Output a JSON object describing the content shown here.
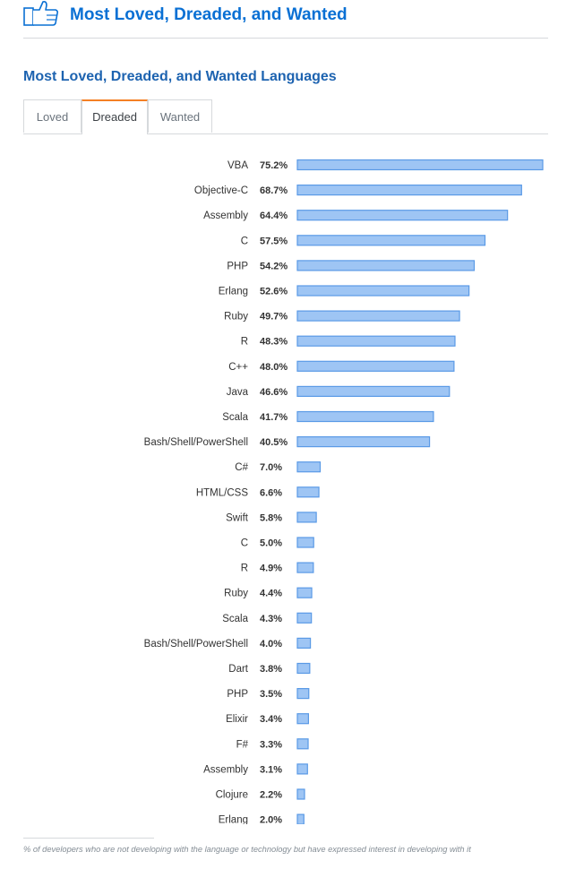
{
  "header": {
    "title": "Most Loved, Dreaded, and Wanted",
    "accent_color": "#0a70d4",
    "icon": "thumbs-up-icon"
  },
  "section": {
    "title": "Most Loved, Dreaded, and Wanted Languages"
  },
  "tabs": [
    {
      "label": "Loved",
      "active": false
    },
    {
      "label": "Dreaded",
      "active": true
    },
    {
      "label": "Wanted",
      "active": false
    }
  ],
  "colors": {
    "bar_fill": "#9ec5f4",
    "bar_stroke": "#5a9ae6",
    "active_tab_accent": "#f48024"
  },
  "chart_data": {
    "type": "bar",
    "orientation": "horizontal",
    "value_suffix": "%",
    "xlim": [
      0,
      75.2
    ],
    "grid": false,
    "categories": [
      "VBA",
      "Objective-C",
      "Assembly",
      "C",
      "PHP",
      "Erlang",
      "Ruby",
      "R",
      "C++",
      "Java",
      "Scala",
      "Bash/Shell/PowerShell",
      "C#",
      "HTML/CSS",
      "Swift",
      "C",
      "R",
      "Ruby",
      "Scala",
      "Bash/Shell/PowerShell",
      "Dart",
      "PHP",
      "Elixir",
      "F#",
      "Assembly",
      "Clojure",
      "Erlang"
    ],
    "values": [
      75.2,
      68.7,
      64.4,
      57.5,
      54.2,
      52.6,
      49.7,
      48.3,
      48.0,
      46.6,
      41.7,
      40.5,
      7.0,
      6.6,
      5.8,
      5.0,
      4.9,
      4.4,
      4.3,
      4.0,
      3.8,
      3.5,
      3.4,
      3.3,
      3.1,
      2.2,
      2.0
    ],
    "value_labels": [
      "75.2%",
      "68.7%",
      "64.4%",
      "57.5%",
      "54.2%",
      "52.6%",
      "49.7%",
      "48.3%",
      "48.0%",
      "46.6%",
      "41.7%",
      "40.5%",
      "7.0%",
      "6.6%",
      "5.8%",
      "5.0%",
      "4.9%",
      "4.4%",
      "4.3%",
      "4.0%",
      "3.8%",
      "3.5%",
      "3.4%",
      "3.3%",
      "3.1%",
      "2.2%",
      "2.0%"
    ]
  },
  "footnote": "% of developers who are not developing with the language or technology but have expressed interest in developing with it"
}
